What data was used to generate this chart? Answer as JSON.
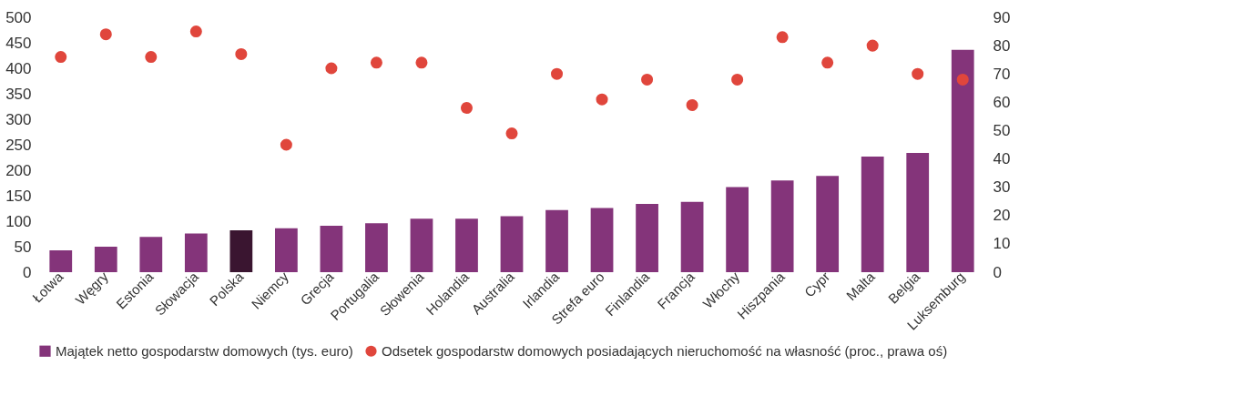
{
  "chart_data": {
    "type": "bar",
    "categories": [
      "Łotwa",
      "Węgry",
      "Estonia",
      "Słowacja",
      "Polska",
      "Niemcy",
      "Grecja",
      "Portugalia",
      "Słowenia",
      "Holandia",
      "Australia",
      "Irlandia",
      "Strefa  euro",
      "Finlandia",
      "Francja",
      "Włochy",
      "Hiszpania",
      "Cypr",
      "Malta",
      "Belgia",
      "Luksemburg"
    ],
    "series": [
      {
        "name": "Majątek netto gospodarstw domowych (tys. euro)",
        "color": "#84347a",
        "colors": [
          "#84347a",
          "#84347a",
          "#84347a",
          "#84347a",
          "#3a1530",
          "#84347a",
          "#84347a",
          "#84347a",
          "#84347a",
          "#84347a",
          "#84347a",
          "#84347a",
          "#84347a",
          "#84347a",
          "#84347a",
          "#84347a",
          "#84347a",
          "#84347a",
          "#84347a",
          "#84347a",
          "#84347a"
        ],
        "values": [
          43,
          50,
          69,
          76,
          82,
          86,
          91,
          96,
          105,
          105,
          110,
          122,
          126,
          134,
          138,
          167,
          180,
          189,
          227,
          234,
          436
        ]
      },
      {
        "name": "Odsetek gospodarstw domowych posiadających nieruchomość na własność (proc., prawa oś)",
        "type": "scatter",
        "axis": "y2",
        "color": "#e0463c",
        "values": [
          76,
          84,
          76,
          85,
          77,
          45,
          72,
          74,
          74,
          58,
          49,
          70,
          61,
          68,
          59,
          68,
          83,
          74,
          80,
          70,
          68
        ]
      }
    ],
    "ylim": [
      0,
      500
    ],
    "yticks": [
      0,
      50,
      100,
      150,
      200,
      250,
      300,
      350,
      400,
      450,
      500
    ],
    "y2lim": [
      0,
      90
    ],
    "y2ticks": [
      0,
      10,
      20,
      30,
      40,
      50,
      60,
      70,
      80,
      90
    ],
    "legend": "bottom",
    "grid": false,
    "marker": "circle"
  }
}
